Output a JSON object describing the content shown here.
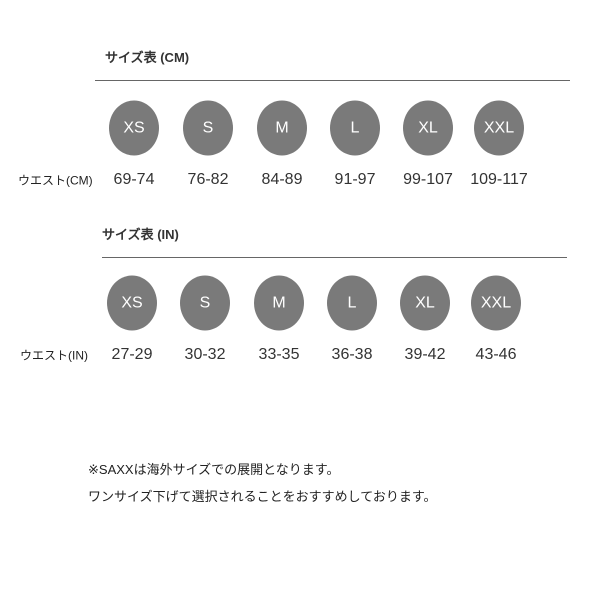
{
  "colors": {
    "circle": "#7a7a7a",
    "circle_text": "#ffffff",
    "rule": "#666666"
  },
  "cm_table": {
    "title": "サイズ表 (CM)",
    "row_label": "ウエスト(CM)",
    "sizes": [
      "XS",
      "S",
      "M",
      "L",
      "XL",
      "XXL"
    ],
    "values": [
      "69-74",
      "76-82",
      "84-89",
      "91-97",
      "99-107",
      "109-117"
    ]
  },
  "in_table": {
    "title": "サイズ表 (IN)",
    "row_label": "ウエスト(IN)",
    "sizes": [
      "XS",
      "S",
      "M",
      "L",
      "XL",
      "XXL"
    ],
    "values": [
      "27-29",
      "30-32",
      "33-35",
      "36-38",
      "39-42",
      "43-46"
    ]
  },
  "notes": [
    "※SAXXは海外サイズでの展開となります。",
    "ワンサイズ下げて選択されることをおすすめしております。"
  ]
}
